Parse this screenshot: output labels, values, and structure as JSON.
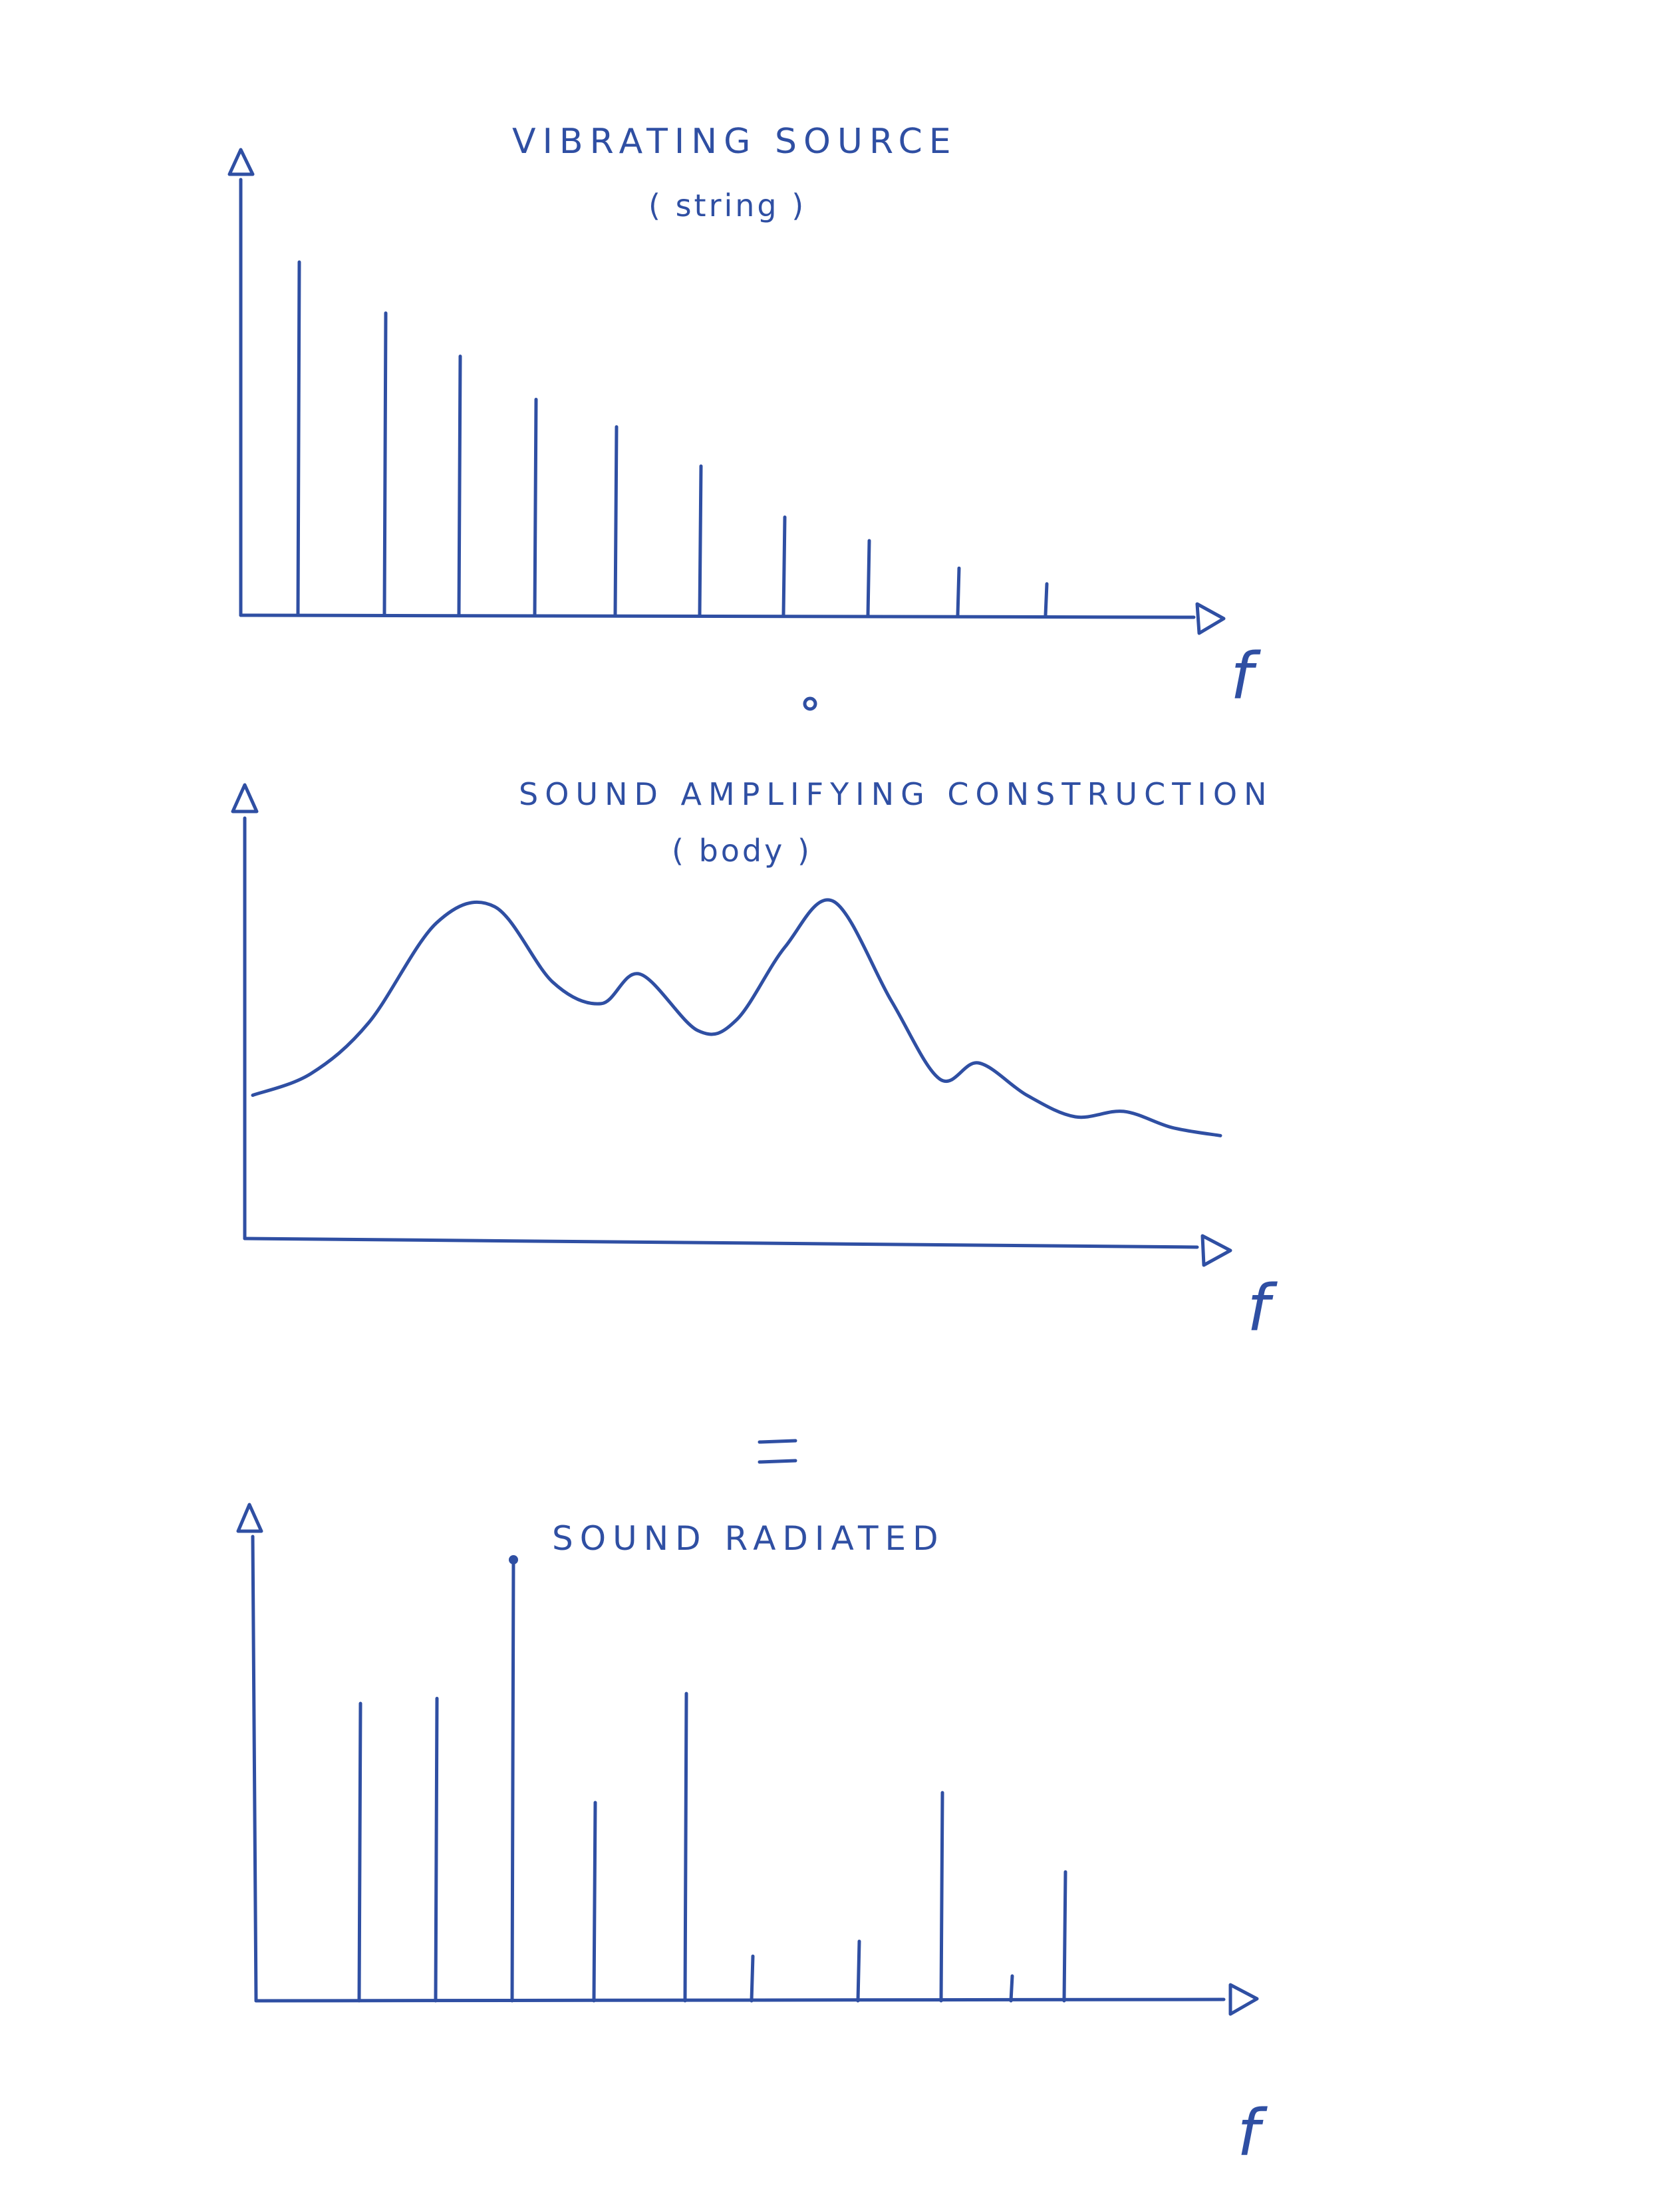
{
  "panels": [
    {
      "id": "vibrating-source",
      "title": "VIBRATING SOURCE",
      "subtitle": "( string )",
      "axis_label": "f",
      "chart_data": {
        "type": "stem",
        "description_in_picture": "harmonic series",
        "values": [
          0.9,
          0.77,
          0.66,
          0.55,
          0.48,
          0.38,
          0.25,
          0.19,
          0.12,
          0.08
        ]
      }
    },
    {
      "id": "amplifying-construction",
      "title": "SOUND AMPLIFYING CONSTRUCTION",
      "subtitle": "( body )",
      "axis_label": "f",
      "chart_data": {
        "type": "line",
        "x": [
          0.0,
          0.06,
          0.12,
          0.19,
          0.25,
          0.31,
          0.36,
          0.4,
          0.46,
          0.5,
          0.55,
          0.6,
          0.66,
          0.71,
          0.75,
          0.8,
          0.85,
          0.9,
          0.95,
          1.0
        ],
        "values": [
          0.28,
          0.36,
          0.55,
          0.92,
          0.98,
          0.7,
          0.62,
          0.73,
          0.52,
          0.56,
          0.83,
          1.0,
          0.63,
          0.34,
          0.4,
          0.28,
          0.2,
          0.22,
          0.16,
          0.13
        ]
      }
    },
    {
      "id": "sound-radiated",
      "title": "SOUND RADIATED",
      "subtitle": "",
      "axis_label": "f",
      "chart_data": {
        "type": "stem",
        "values": [
          0.6,
          0.61,
          0.89,
          0.4,
          0.62,
          0.09,
          0.12,
          0.42,
          0.05,
          0.26
        ]
      }
    }
  ],
  "separators": {
    "between_1_2": "∘",
    "between_2_3": "="
  },
  "ink_color": "#2f4fa3"
}
